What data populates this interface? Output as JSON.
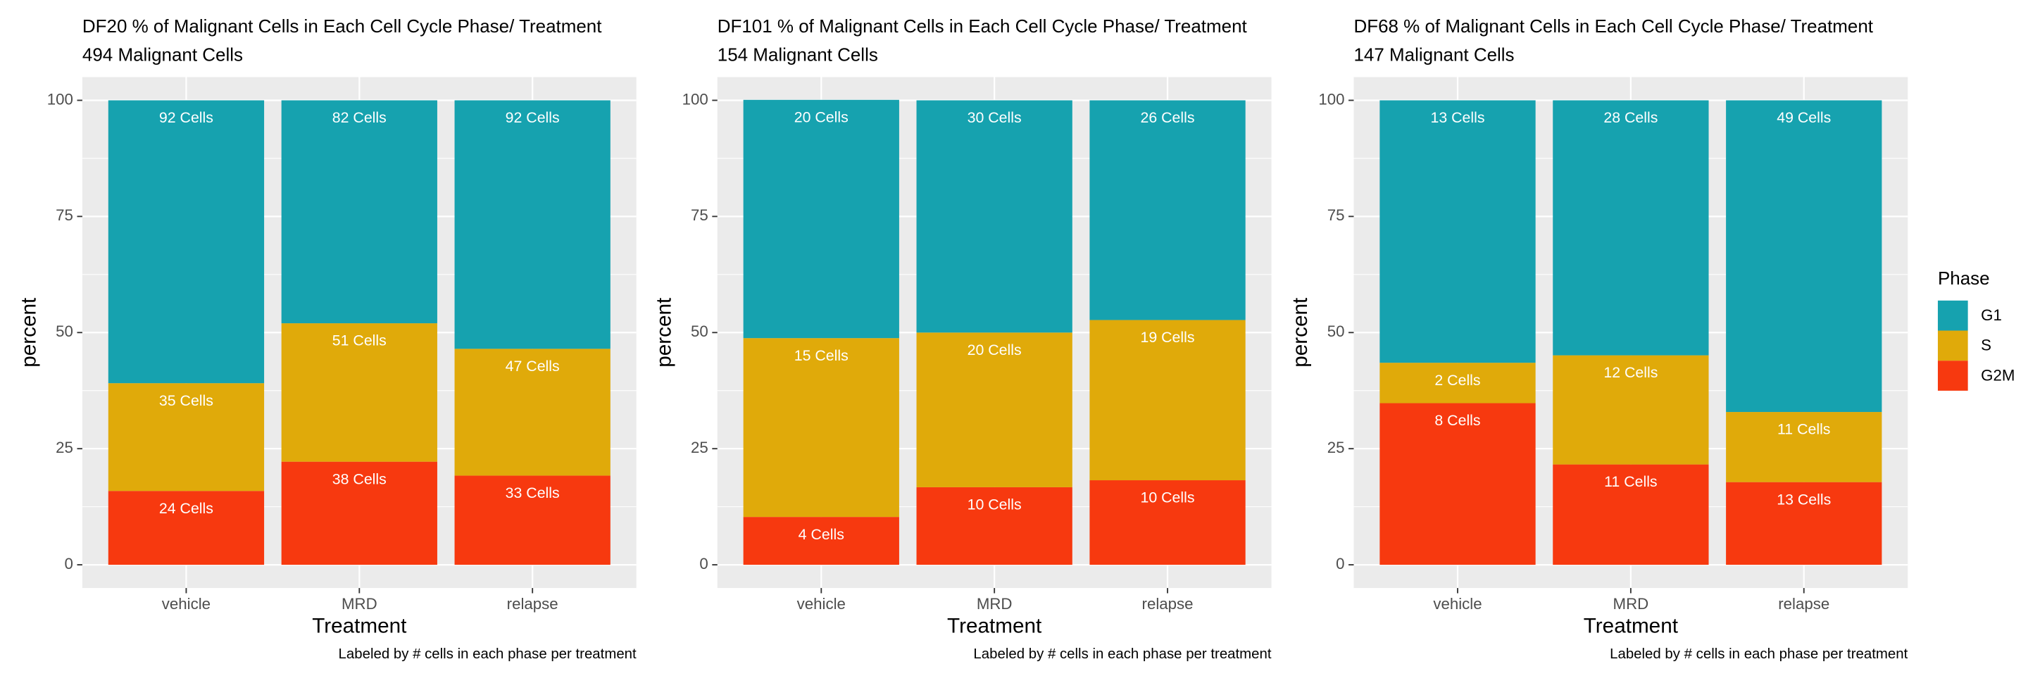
{
  "chart_data": [
    {
      "type": "bar",
      "stacking": "stacked",
      "title": "DF20 % of Malignant Cells in Each Cell Cycle Phase/ Treatment",
      "subtitle": "494 Malignant Cells",
      "x_label": "Treatment",
      "y_label": "percent",
      "caption": "Labeled by # cells in each phase per treatment",
      "legend_title": "Phase",
      "legend_position": "right",
      "grid": true,
      "categories": [
        "vehicle",
        "MRD",
        "relapse"
      ],
      "ylim": [
        -5,
        105
      ],
      "yticks": [
        0,
        25,
        50,
        75,
        100
      ],
      "series": [
        {
          "name": "G2M",
          "color": "#f7390f",
          "values": [
            15.9,
            22.2,
            19.2
          ],
          "cell_labels": [
            "24 Cells",
            "38 Cells",
            "33 Cells"
          ]
        },
        {
          "name": "S",
          "color": "#e0aa0a",
          "values": [
            23.2,
            29.8,
            27.3
          ],
          "cell_labels": [
            "35 Cells",
            "51 Cells",
            "47 Cells"
          ]
        },
        {
          "name": "G1",
          "color": "#16a2af",
          "values": [
            60.9,
            48.0,
            53.5
          ],
          "cell_labels": [
            "92 Cells",
            "82 Cells",
            "92 Cells"
          ]
        }
      ]
    },
    {
      "type": "bar",
      "stacking": "stacked",
      "title": "DF101 % of Malignant Cells in Each Cell Cycle Phase/ Treatment",
      "subtitle": "154 Malignant Cells",
      "x_label": "Treatment",
      "y_label": "percent",
      "caption": "Labeled by # cells in each phase per treatment",
      "grid": true,
      "categories": [
        "vehicle",
        "MRD",
        "relapse"
      ],
      "ylim": [
        -5,
        105
      ],
      "yticks": [
        0,
        25,
        50,
        75,
        100
      ],
      "series": [
        {
          "name": "G2M",
          "color": "#f7390f",
          "values": [
            10.3,
            16.7,
            18.2
          ],
          "cell_labels": [
            "4 Cells",
            "10 Cells",
            "10 Cells"
          ]
        },
        {
          "name": "S",
          "color": "#e0aa0a",
          "values": [
            38.5,
            33.3,
            34.5
          ],
          "cell_labels": [
            "15 Cells",
            "20 Cells",
            "19 Cells"
          ]
        },
        {
          "name": "G1",
          "color": "#16a2af",
          "values": [
            51.3,
            50.0,
            47.3
          ],
          "cell_labels": [
            "20 Cells",
            "30 Cells",
            "26 Cells"
          ]
        }
      ]
    },
    {
      "type": "bar",
      "stacking": "stacked",
      "title": "DF68 % of Malignant Cells in Each Cell Cycle Phase/ Treatment",
      "subtitle": "147 Malignant Cells",
      "x_label": "Treatment",
      "y_label": "percent",
      "caption": "Labeled by # cells in each phase per treatment",
      "grid": true,
      "categories": [
        "vehicle",
        "MRD",
        "relapse"
      ],
      "ylim": [
        -5,
        105
      ],
      "yticks": [
        0,
        25,
        50,
        75,
        100
      ],
      "series": [
        {
          "name": "G2M",
          "color": "#f7390f",
          "values": [
            34.8,
            21.6,
            17.8
          ],
          "cell_labels": [
            "8 Cells",
            "11 Cells",
            "13 Cells"
          ]
        },
        {
          "name": "S",
          "color": "#e0aa0a",
          "values": [
            8.7,
            23.5,
            15.1
          ],
          "cell_labels": [
            "2 Cells",
            "12 Cells",
            "11 Cells"
          ]
        },
        {
          "name": "G1",
          "color": "#16a2af",
          "values": [
            56.5,
            54.9,
            67.1
          ],
          "cell_labels": [
            "13 Cells",
            "28 Cells",
            "49 Cells"
          ]
        }
      ]
    }
  ]
}
